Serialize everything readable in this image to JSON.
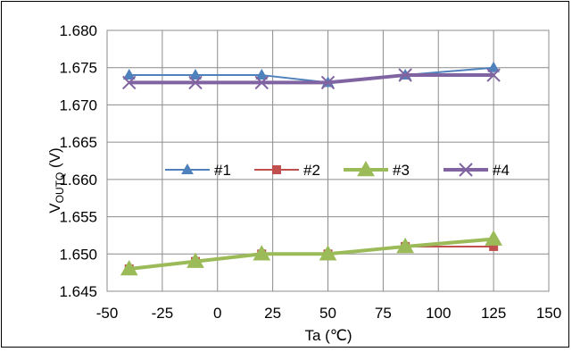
{
  "chart_data": {
    "type": "line",
    "xlabel": "Ta (℃)",
    "ylabel_main": "V",
    "ylabel_sub": "OUTQ",
    "ylabel_unit": " (V)",
    "xlim": [
      -50,
      150
    ],
    "ylim": [
      1.645,
      1.68
    ],
    "xticks": [
      -50,
      -25,
      0,
      25,
      50,
      75,
      100,
      125,
      150
    ],
    "yticks": [
      1.645,
      1.65,
      1.655,
      1.66,
      1.665,
      1.67,
      1.675,
      1.68
    ],
    "ytick_labels": [
      "1.645",
      "1.650",
      "1.655",
      "1.660",
      "1.665",
      "1.670",
      "1.675",
      "1.680"
    ],
    "xtick_labels": [
      "-50",
      "-25",
      "0",
      "25",
      "50",
      "75",
      "100",
      "125",
      "150"
    ],
    "grid": true,
    "legend_position": "middle-center",
    "series": [
      {
        "name": "#1",
        "color": "#4f81bd",
        "marker": "triangle",
        "width": 2,
        "x": [
          -40,
          -10,
          20,
          50,
          85,
          125
        ],
        "y": [
          1.674,
          1.674,
          1.674,
          1.673,
          1.674,
          1.675
        ]
      },
      {
        "name": "#2",
        "color": "#c0504d",
        "marker": "square",
        "width": 2,
        "x": [
          -40,
          -10,
          20,
          50,
          85,
          125
        ],
        "y": [
          1.648,
          1.649,
          1.65,
          1.65,
          1.651,
          1.651
        ]
      },
      {
        "name": "#3",
        "color": "#9bbb59",
        "marker": "triangle",
        "width": 4,
        "x": [
          -40,
          -10,
          20,
          50,
          85,
          125
        ],
        "y": [
          1.648,
          1.649,
          1.65,
          1.65,
          1.651,
          1.652
        ]
      },
      {
        "name": "#4",
        "color": "#8064a2",
        "marker": "x",
        "width": 4,
        "x": [
          -40,
          -10,
          20,
          50,
          85,
          125
        ],
        "y": [
          1.673,
          1.673,
          1.673,
          1.673,
          1.674,
          1.674
        ]
      }
    ]
  }
}
